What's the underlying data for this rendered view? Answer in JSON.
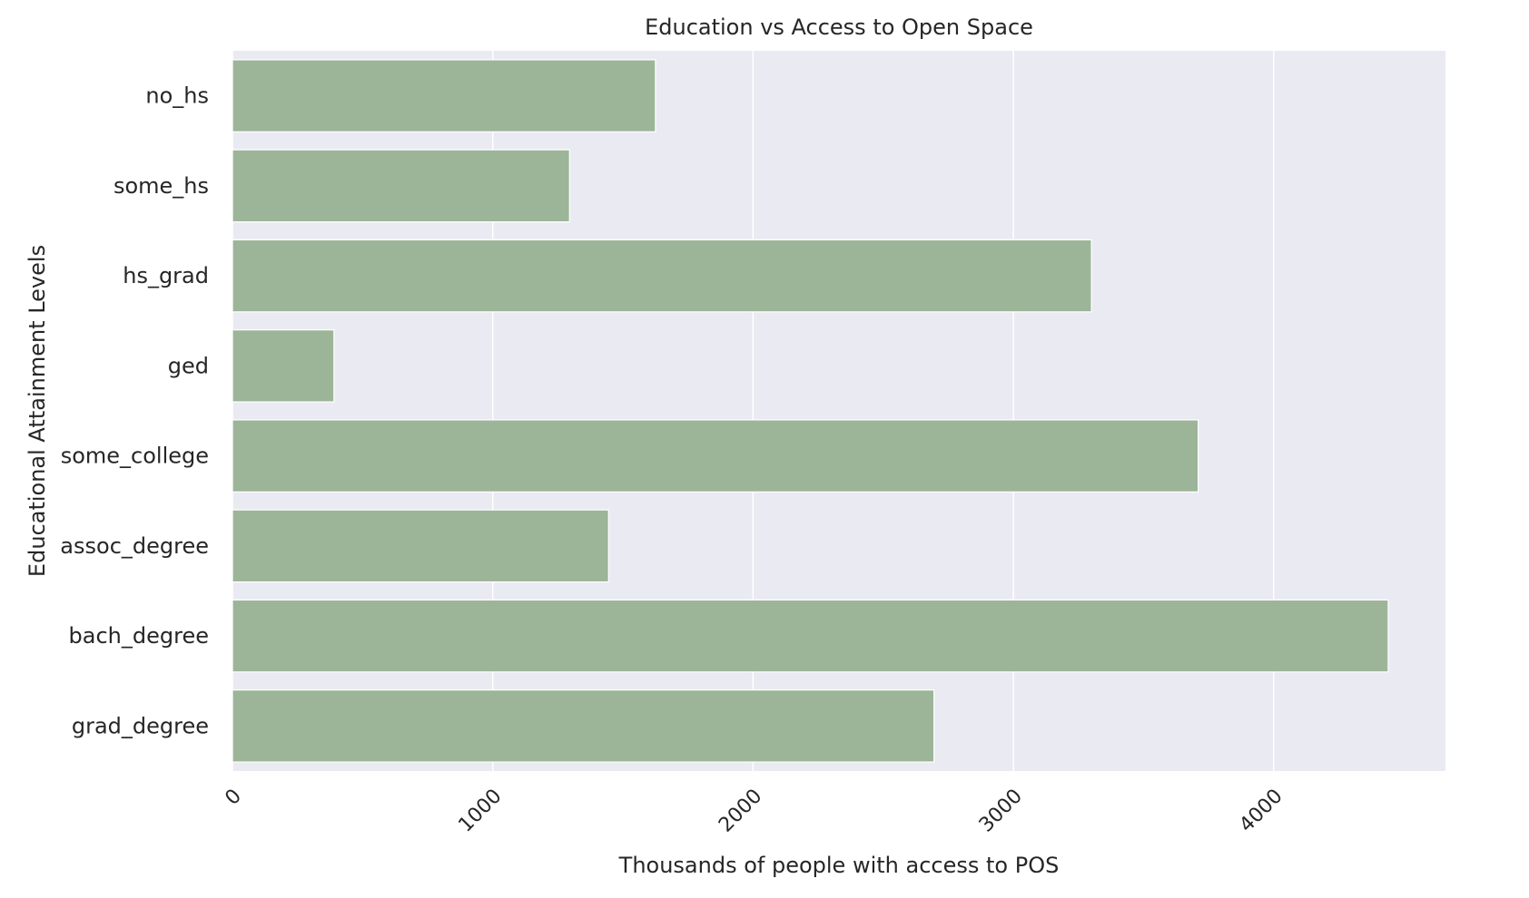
{
  "chart_data": {
    "type": "bar",
    "orientation": "horizontal",
    "title": "Education vs Access to Open Space",
    "xlabel": "Thousands of people with access to POS",
    "ylabel": "Educational Attainment Levels",
    "categories": [
      "no_hs",
      "some_hs",
      "hs_grad",
      "ged",
      "some_college",
      "assoc_degree",
      "bach_degree",
      "grad_degree"
    ],
    "values": [
      1625,
      1295,
      3300,
      390,
      3710,
      1445,
      4440,
      2695
    ],
    "xlim": [
      0,
      4660
    ],
    "xticks": [
      0,
      1000,
      2000,
      3000,
      4000
    ],
    "xtick_labels": [
      "0",
      "1000",
      "2000",
      "3000",
      "4000"
    ],
    "xtick_rotation": -45,
    "grid": true,
    "colors": {
      "bar": "#9cb598",
      "plot_background": "#eaeaf2",
      "grid": "#ffffff",
      "text": "#262626"
    }
  }
}
